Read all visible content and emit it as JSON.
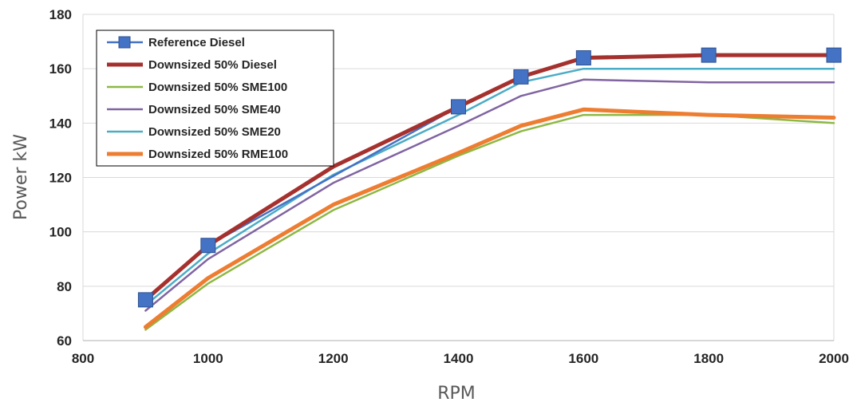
{
  "chart_data": {
    "type": "line",
    "xlabel": "RPM",
    "ylabel": "Power kW",
    "xlim": [
      800,
      2000
    ],
    "ylim": [
      60,
      180
    ],
    "x_ticks": [
      800,
      1000,
      1200,
      1400,
      1600,
      1800,
      2000
    ],
    "y_ticks": [
      60,
      80,
      100,
      120,
      140,
      160,
      180
    ],
    "grid": "horizontal",
    "legend_position": "top-left",
    "series": [
      {
        "name": "Reference Diesel",
        "color": "#4472C4",
        "marker": "square",
        "x": [
          900,
          1000,
          1400,
          1500,
          1600,
          1800,
          2000
        ],
        "y": [
          75,
          95,
          146,
          157,
          164,
          165,
          165
        ]
      },
      {
        "name": "Downsized 50% Diesel",
        "color": "#A5312E",
        "x": [
          900,
          1000,
          1200,
          1400,
          1500,
          1600,
          1800,
          2000
        ],
        "y": [
          75,
          95,
          124,
          146,
          157,
          164,
          165,
          165
        ]
      },
      {
        "name": "Downsized 50% SME100",
        "color": "#8DB843",
        "x": [
          900,
          1000,
          1200,
          1400,
          1500,
          1600,
          1800,
          2000
        ],
        "y": [
          64,
          81,
          108,
          128,
          137,
          143,
          143,
          140
        ]
      },
      {
        "name": "Downsized 50% SME40",
        "color": "#8064A2",
        "x": [
          900,
          1000,
          1200,
          1400,
          1500,
          1600,
          1800,
          2000
        ],
        "y": [
          71,
          90,
          118,
          139,
          150,
          156,
          155,
          155
        ]
      },
      {
        "name": "Downsized 50% SME20",
        "color": "#4BACC6",
        "x": [
          900,
          1000,
          1200,
          1400,
          1500,
          1600,
          1800,
          2000
        ],
        "y": [
          73,
          92,
          121,
          143,
          155,
          160,
          160,
          160
        ]
      },
      {
        "name": "Downsized 50% RME100",
        "color": "#ED7D31",
        "x": [
          900,
          1000,
          1200,
          1400,
          1500,
          1600,
          1800,
          2000
        ],
        "y": [
          65,
          83,
          110,
          129,
          139,
          145,
          143,
          142
        ]
      }
    ]
  }
}
